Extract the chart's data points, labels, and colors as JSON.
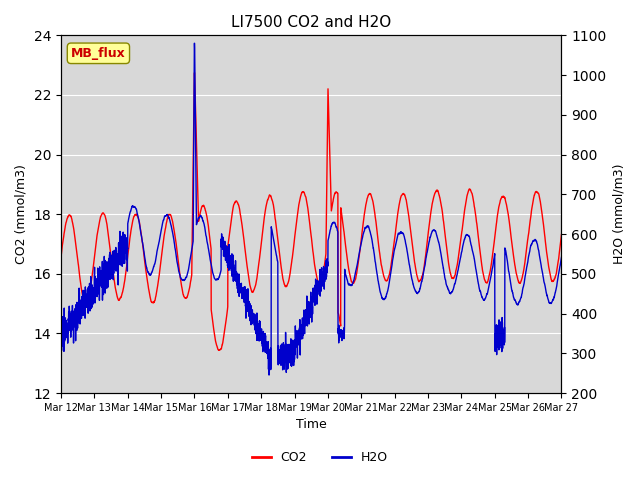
{
  "title": "LI7500 CO2 and H2O",
  "xlabel": "Time",
  "ylabel_left": "CO2 (mmol/m3)",
  "ylabel_right": "H2O (mmol/m3)",
  "co2_ylim": [
    12,
    24
  ],
  "h2o_ylim": [
    200,
    1100
  ],
  "co2_yticks": [
    12,
    14,
    16,
    18,
    20,
    22,
    24
  ],
  "h2o_yticks": [
    200,
    300,
    400,
    500,
    600,
    700,
    800,
    900,
    1000,
    1100
  ],
  "xtick_labels": [
    "Mar 12",
    "Mar 13",
    "Mar 14",
    "Mar 15",
    "Mar 16",
    "Mar 17",
    "Mar 18",
    "Mar 19",
    "Mar 20",
    "Mar 21",
    "Mar 22",
    "Mar 23",
    "Mar 24",
    "Mar 25",
    "Mar 26",
    "Mar 27"
  ],
  "co2_color": "#FF0000",
  "h2o_color": "#0000CC",
  "background_color": "#E8E8E8",
  "plot_bg_color": "#D8D8D8",
  "annotation_text": "MB_flux",
  "annotation_color": "#CC0000",
  "annotation_bg": "#FFFF99",
  "legend_co2": "CO2",
  "legend_h2o": "H2O",
  "num_points": 3600,
  "seed": 42
}
